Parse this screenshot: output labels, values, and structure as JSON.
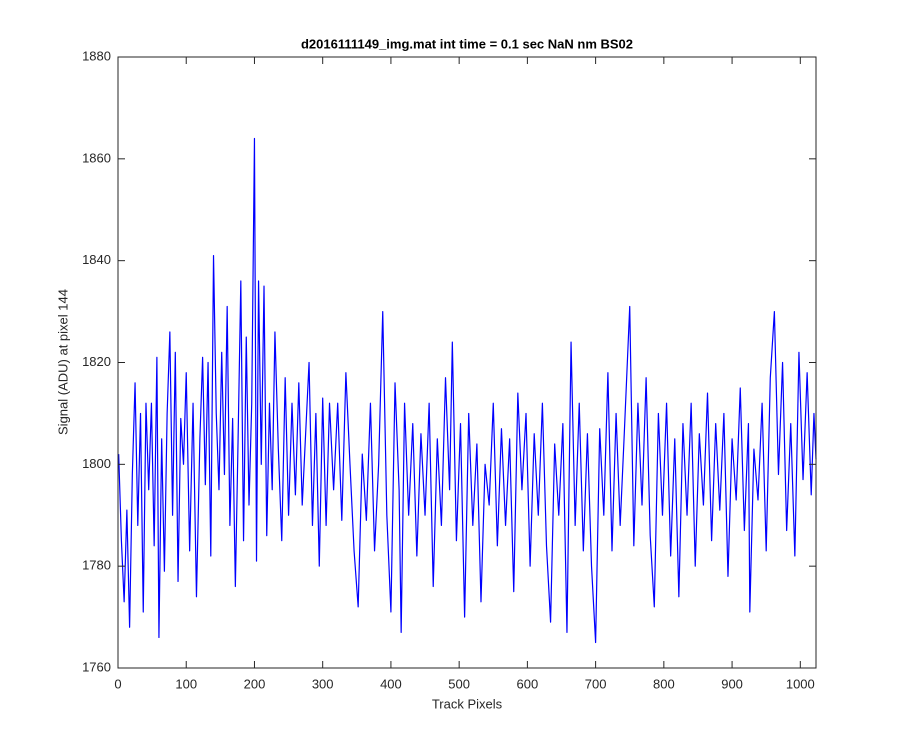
{
  "chart_data": {
    "type": "line",
    "title": "d2016111149_img.mat int time = 0.1 sec  NaN nm BS02",
    "x_label": "Track Pixels",
    "y_label": "Signal (ADU) at pixel 144",
    "color": "#0000ff",
    "xlim": [
      0,
      1023
    ],
    "ylim": [
      1760,
      1880
    ],
    "xticks": [
      0,
      100,
      200,
      300,
      400,
      500,
      600,
      700,
      800,
      900,
      1000
    ],
    "yticks": [
      1760,
      1780,
      1800,
      1820,
      1840,
      1860,
      1880
    ],
    "grid": false,
    "x": [
      1,
      5,
      9,
      13,
      17,
      21,
      25,
      29,
      33,
      37,
      41,
      45,
      49,
      53,
      57,
      60,
      64,
      68,
      72,
      76,
      80,
      84,
      88,
      92,
      96,
      100,
      105,
      110,
      115,
      120,
      124,
      128,
      132,
      136,
      140,
      144,
      148,
      152,
      156,
      160,
      164,
      168,
      172,
      176,
      180,
      184,
      188,
      192,
      196,
      200,
      203,
      206,
      210,
      214,
      218,
      222,
      226,
      230,
      235,
      240,
      245,
      250,
      255,
      260,
      265,
      270,
      275,
      280,
      285,
      290,
      295,
      300,
      305,
      310,
      316,
      322,
      328,
      334,
      340,
      346,
      352,
      358,
      364,
      370,
      376,
      382,
      388,
      394,
      400,
      406,
      412,
      415,
      420,
      426,
      432,
      438,
      444,
      450,
      456,
      462,
      468,
      474,
      480,
      486,
      490,
      496,
      502,
      508,
      514,
      520,
      526,
      532,
      538,
      544,
      550,
      556,
      562,
      568,
      574,
      580,
      586,
      592,
      598,
      604,
      610,
      616,
      622,
      628,
      634,
      640,
      646,
      652,
      658,
      664,
      670,
      676,
      682,
      688,
      694,
      700,
      706,
      712,
      718,
      724,
      730,
      736,
      742,
      750,
      756,
      762,
      768,
      774,
      780,
      786,
      792,
      798,
      804,
      810,
      816,
      822,
      828,
      834,
      840,
      846,
      852,
      858,
      864,
      870,
      876,
      882,
      888,
      894,
      900,
      906,
      912,
      918,
      924,
      926,
      932,
      938,
      944,
      950,
      956,
      962,
      968,
      974,
      980,
      986,
      992,
      998,
      1004,
      1010,
      1016,
      1020,
      1023
    ],
    "values": [
      1802,
      1785,
      1773,
      1791,
      1768,
      1798,
      1816,
      1788,
      1810,
      1771,
      1812,
      1795,
      1812,
      1784,
      1821,
      1766,
      1805,
      1779,
      1810,
      1826,
      1790,
      1822,
      1777,
      1809,
      1800,
      1818,
      1783,
      1812,
      1774,
      1805,
      1821,
      1796,
      1820,
      1782,
      1841,
      1810,
      1795,
      1822,
      1798,
      1831,
      1788,
      1809,
      1776,
      1805,
      1836,
      1785,
      1825,
      1792,
      1812,
      1864,
      1781,
      1836,
      1800,
      1835,
      1786,
      1812,
      1795,
      1826,
      1803,
      1785,
      1817,
      1790,
      1812,
      1794,
      1816,
      1792,
      1806,
      1820,
      1788,
      1810,
      1780,
      1813,
      1788,
      1812,
      1795,
      1812,
      1789,
      1818,
      1800,
      1783,
      1772,
      1802,
      1789,
      1812,
      1783,
      1800,
      1830,
      1790,
      1771,
      1816,
      1795,
      1767,
      1812,
      1790,
      1808,
      1782,
      1806,
      1790,
      1812,
      1776,
      1805,
      1788,
      1817,
      1795,
      1824,
      1785,
      1808,
      1770,
      1810,
      1788,
      1804,
      1773,
      1800,
      1792,
      1812,
      1784,
      1807,
      1788,
      1805,
      1775,
      1814,
      1795,
      1810,
      1780,
      1806,
      1790,
      1812,
      1784,
      1769,
      1804,
      1790,
      1808,
      1767,
      1824,
      1788,
      1812,
      1783,
      1806,
      1780,
      1765,
      1807,
      1790,
      1818,
      1783,
      1810,
      1788,
      1806,
      1831,
      1784,
      1812,
      1792,
      1817,
      1786,
      1772,
      1810,
      1790,
      1812,
      1782,
      1805,
      1774,
      1808,
      1790,
      1812,
      1780,
      1806,
      1792,
      1814,
      1785,
      1808,
      1791,
      1810,
      1778,
      1805,
      1793,
      1815,
      1787,
      1808,
      1771,
      1803,
      1793,
      1812,
      1783,
      1817,
      1830,
      1798,
      1820,
      1787,
      1808,
      1782,
      1822,
      1797,
      1818,
      1794,
      1810,
      1801
    ]
  }
}
